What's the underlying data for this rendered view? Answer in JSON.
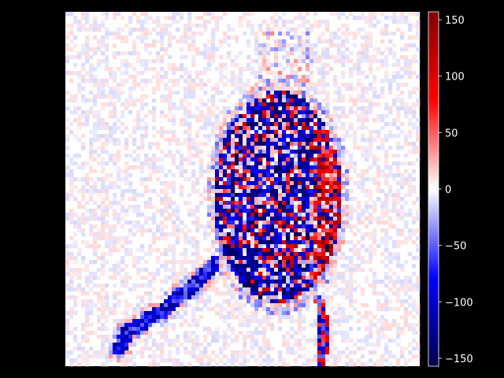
{
  "chart_data": {
    "type": "heatmap",
    "title": "",
    "xlabel": "",
    "ylabel": "",
    "colormap": "seismic",
    "colorbar": {
      "vmin": -157,
      "vmax": 157,
      "ticks": [
        150,
        100,
        50,
        0,
        -50,
        -100,
        -150
      ],
      "tick_labels": [
        "150",
        "100",
        "50",
        "0",
        "−50",
        "−100",
        "−150"
      ]
    },
    "axes_visible": false,
    "grid": false,
    "grid_size": [
      90,
      90
    ],
    "background_color": "#000000",
    "text_color": "#ffffff"
  }
}
